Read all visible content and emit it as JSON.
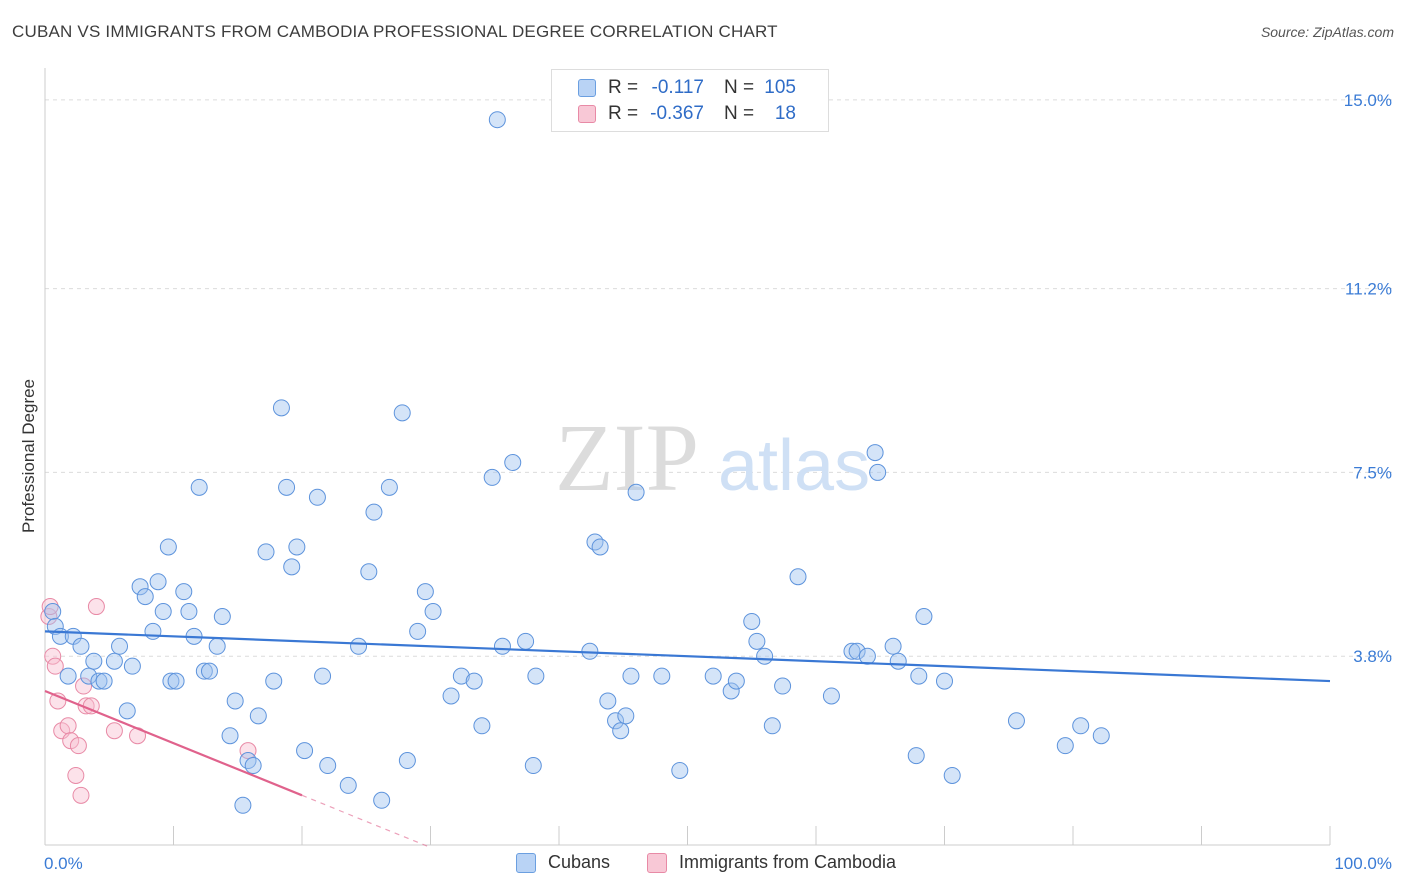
{
  "title": "CUBAN VS IMMIGRANTS FROM CAMBODIA PROFESSIONAL DEGREE CORRELATION CHART",
  "source": "Source: ZipAtlas.com",
  "watermark": {
    "zip": "ZIP",
    "atlas": "atlas"
  },
  "legend": {
    "r_label": "R =",
    "n_label": "N =",
    "rows": [
      {
        "r": "-0.117",
        "n": "105",
        "fill": "#b9d3f5",
        "stroke": "#6b9fe0"
      },
      {
        "r": "-0.367",
        "n": "18",
        "fill": "#f8c8d6",
        "stroke": "#e88aa6"
      }
    ]
  },
  "bottom_legend": [
    {
      "label": "Cubans",
      "fill": "#b9d3f5",
      "stroke": "#6b9fe0"
    },
    {
      "label": "Immigrants from Cambodia",
      "fill": "#f8c8d6",
      "stroke": "#e88aa6"
    }
  ],
  "chart_data": {
    "type": "scatter",
    "title": "CUBAN VS IMMIGRANTS FROM CAMBODIA PROFESSIONAL DEGREE CORRELATION CHART",
    "xlabel": "",
    "ylabel": "Professional Degree",
    "xlim": [
      0,
      100
    ],
    "ylim": [
      0,
      15.4
    ],
    "x_tick_labels": [
      "0.0%",
      "100.0%"
    ],
    "y_ticks": [
      3.8,
      7.5,
      11.2,
      15.0
    ],
    "y_tick_labels": [
      "3.8%",
      "7.5%",
      "11.2%",
      "15.0%"
    ],
    "colors": {
      "cubans": "#3a78d4",
      "cambodia": "#e0628c",
      "axis_text": "#3a7bd5"
    },
    "series": [
      {
        "name": "Cubans",
        "points": [
          [
            0.6,
            4.7
          ],
          [
            0.8,
            4.4
          ],
          [
            1.2,
            4.2
          ],
          [
            1.8,
            3.4
          ],
          [
            2.2,
            4.2
          ],
          [
            2.8,
            4.0
          ],
          [
            3.4,
            3.4
          ],
          [
            3.8,
            3.7
          ],
          [
            4.2,
            3.3
          ],
          [
            4.6,
            3.3
          ],
          [
            5.4,
            3.7
          ],
          [
            5.8,
            4.0
          ],
          [
            6.4,
            2.7
          ],
          [
            6.8,
            3.6
          ],
          [
            7.4,
            5.2
          ],
          [
            7.8,
            5.0
          ],
          [
            8.4,
            4.3
          ],
          [
            8.8,
            5.3
          ],
          [
            9.2,
            4.7
          ],
          [
            9.6,
            6.0
          ],
          [
            9.8,
            3.3
          ],
          [
            10.2,
            3.3
          ],
          [
            10.8,
            5.1
          ],
          [
            11.2,
            4.7
          ],
          [
            11.6,
            4.2
          ],
          [
            12.0,
            7.2
          ],
          [
            12.4,
            3.5
          ],
          [
            12.8,
            3.5
          ],
          [
            13.4,
            4.0
          ],
          [
            13.8,
            4.6
          ],
          [
            14.4,
            2.2
          ],
          [
            14.8,
            2.9
          ],
          [
            15.4,
            0.8
          ],
          [
            15.8,
            1.7
          ],
          [
            16.2,
            1.6
          ],
          [
            16.6,
            2.6
          ],
          [
            17.2,
            5.9
          ],
          [
            17.8,
            3.3
          ],
          [
            18.4,
            8.8
          ],
          [
            18.8,
            7.2
          ],
          [
            19.2,
            5.6
          ],
          [
            19.6,
            6.0
          ],
          [
            20.2,
            1.9
          ],
          [
            21.2,
            7.0
          ],
          [
            21.6,
            3.4
          ],
          [
            22.0,
            1.6
          ],
          [
            23.6,
            1.2
          ],
          [
            24.4,
            4.0
          ],
          [
            25.2,
            5.5
          ],
          [
            25.6,
            6.7
          ],
          [
            26.2,
            0.9
          ],
          [
            26.8,
            7.2
          ],
          [
            27.8,
            8.7
          ],
          [
            28.2,
            1.7
          ],
          [
            29.0,
            4.3
          ],
          [
            29.6,
            5.1
          ],
          [
            30.2,
            4.7
          ],
          [
            31.6,
            3.0
          ],
          [
            32.4,
            3.4
          ],
          [
            33.4,
            3.3
          ],
          [
            34.0,
            2.4
          ],
          [
            34.8,
            7.4
          ],
          [
            35.2,
            14.6
          ],
          [
            35.6,
            4.0
          ],
          [
            36.4,
            7.7
          ],
          [
            37.4,
            4.1
          ],
          [
            38.0,
            1.6
          ],
          [
            38.2,
            3.4
          ],
          [
            42.4,
            3.9
          ],
          [
            42.8,
            6.1
          ],
          [
            43.2,
            6.0
          ],
          [
            43.8,
            2.9
          ],
          [
            44.4,
            2.5
          ],
          [
            44.8,
            2.3
          ],
          [
            45.2,
            2.6
          ],
          [
            45.6,
            3.4
          ],
          [
            46.0,
            7.1
          ],
          [
            48.0,
            3.4
          ],
          [
            49.4,
            1.5
          ],
          [
            52.0,
            3.4
          ],
          [
            53.4,
            3.1
          ],
          [
            53.8,
            3.3
          ],
          [
            55.0,
            4.5
          ],
          [
            55.4,
            4.1
          ],
          [
            56.0,
            3.8
          ],
          [
            56.6,
            2.4
          ],
          [
            57.4,
            3.2
          ],
          [
            58.6,
            5.4
          ],
          [
            61.2,
            3.0
          ],
          [
            62.8,
            3.9
          ],
          [
            63.2,
            3.9
          ],
          [
            64.0,
            3.8
          ],
          [
            64.6,
            7.9
          ],
          [
            64.8,
            7.5
          ],
          [
            66.0,
            4.0
          ],
          [
            66.4,
            3.7
          ],
          [
            67.8,
            1.8
          ],
          [
            68.0,
            3.4
          ],
          [
            68.4,
            4.6
          ],
          [
            70.0,
            3.3
          ],
          [
            70.6,
            1.4
          ],
          [
            75.6,
            2.5
          ],
          [
            79.4,
            2.0
          ],
          [
            80.6,
            2.4
          ],
          [
            82.2,
            2.2
          ]
        ]
      },
      {
        "name": "Immigrants from Cambodia",
        "points": [
          [
            0.3,
            4.6
          ],
          [
            0.6,
            3.8
          ],
          [
            0.8,
            3.6
          ],
          [
            1.0,
            2.9
          ],
          [
            1.3,
            2.3
          ],
          [
            1.8,
            2.4
          ],
          [
            2.0,
            2.1
          ],
          [
            2.4,
            1.4
          ],
          [
            2.6,
            2.0
          ],
          [
            2.8,
            1.0
          ],
          [
            3.0,
            3.2
          ],
          [
            3.2,
            2.8
          ],
          [
            3.6,
            2.8
          ],
          [
            4.0,
            4.8
          ],
          [
            5.4,
            2.3
          ],
          [
            7.2,
            2.2
          ],
          [
            15.8,
            1.9
          ],
          [
            0.4,
            4.8
          ]
        ]
      }
    ],
    "trend_lines": [
      {
        "series": "Cubans",
        "x": [
          0,
          100
        ],
        "y": [
          4.3,
          3.3
        ]
      },
      {
        "series": "Immigrants from Cambodia",
        "x": [
          0,
          20
        ],
        "y": [
          3.1,
          1.0
        ],
        "dashed_extension_to_x": 30
      }
    ]
  }
}
